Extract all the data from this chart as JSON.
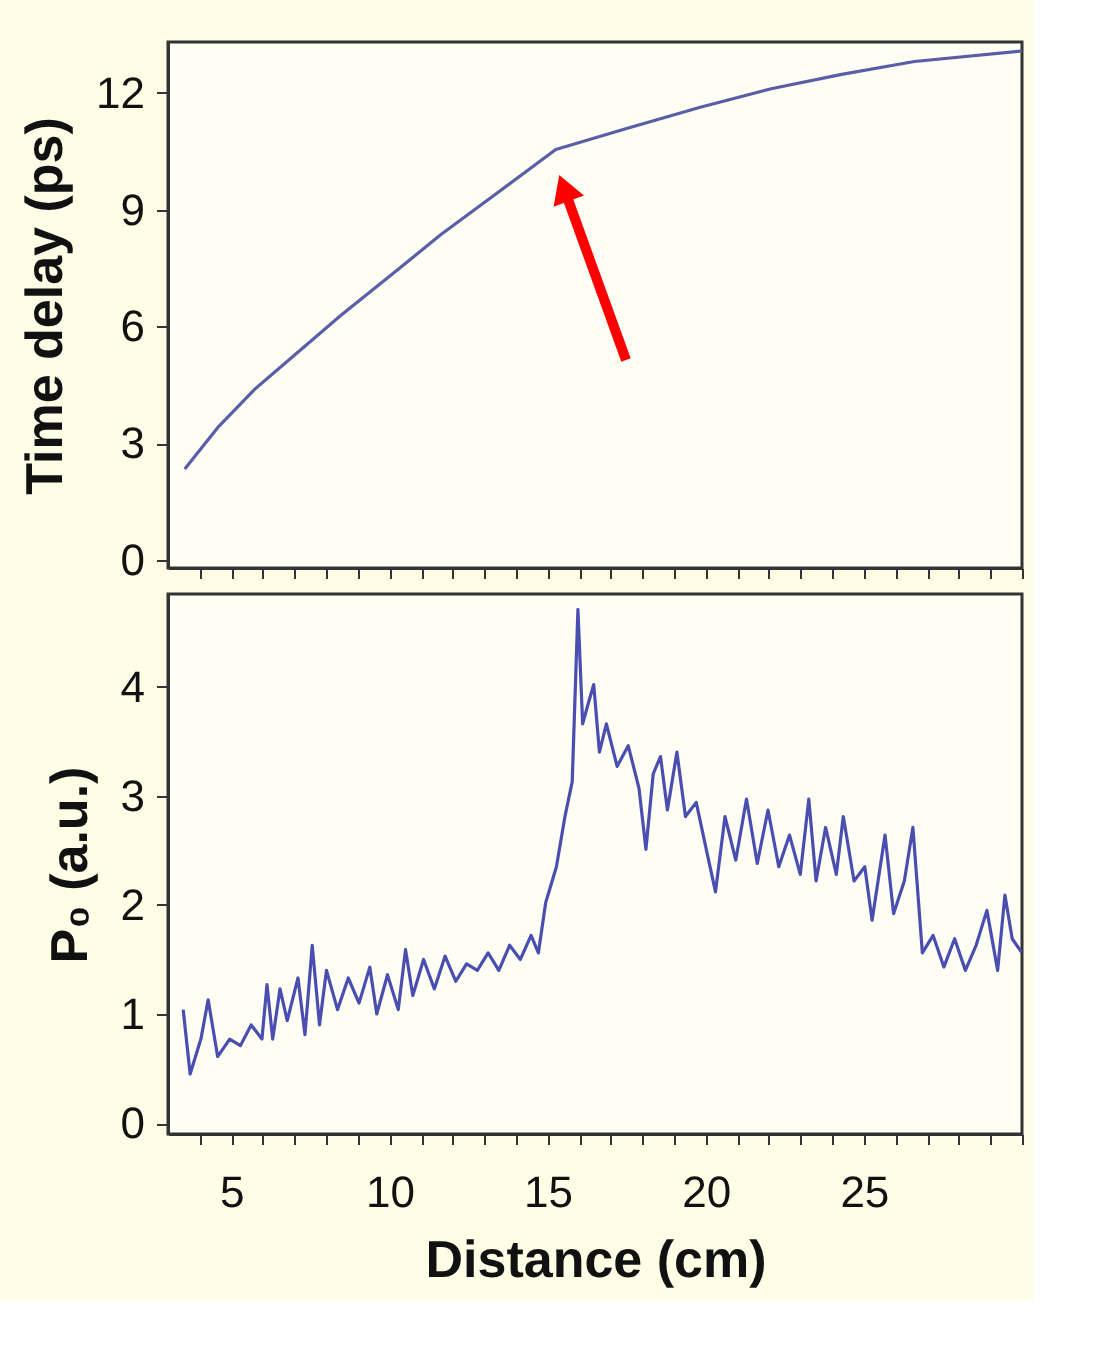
{
  "chart_data": [
    {
      "type": "line",
      "ylabel": "Time delay (ps)",
      "xlim": [
        3,
        30
      ],
      "ylim": [
        -0.2,
        13.3
      ],
      "yticks": [
        0,
        3,
        6,
        9,
        12
      ],
      "tick_labels": "y",
      "grid": false,
      "xticks": [
        {
          "value": 4,
          "label": null
        },
        5,
        {
          "value": 6,
          "label": null
        },
        {
          "value": 7,
          "label": null
        },
        {
          "value": 8,
          "label": null
        },
        {
          "value": 9,
          "label": null
        },
        10,
        {
          "value": 11,
          "label": null
        },
        {
          "value": 12,
          "label": null
        },
        {
          "value": 13,
          "label": null
        },
        {
          "value": 14,
          "label": null
        },
        15,
        {
          "value": 16,
          "label": null
        },
        {
          "value": 17,
          "label": null
        },
        {
          "value": 18,
          "label": null
        },
        {
          "value": 19,
          "label": null
        },
        20,
        {
          "value": 21,
          "label": null
        },
        {
          "value": 22,
          "label": null
        },
        {
          "value": 23,
          "label": null
        },
        {
          "value": 24,
          "label": null
        },
        25,
        {
          "value": 26,
          "label": null
        },
        {
          "value": 27,
          "label": null
        },
        {
          "value": 28,
          "label": null
        },
        {
          "value": 29,
          "label": null
        },
        {
          "value": 30,
          "label": null
        }
      ],
      "series": [
        {
          "color": "#5a5ea8",
          "x": [
            3.53,
            4.6,
            5.73,
            8.46,
            10.27,
            11.63,
            13.45,
            15.26,
            17.5,
            19.8,
            22.07,
            24.3,
            26.6,
            30
          ],
          "values": [
            2.34,
            3.43,
            4.38,
            6.28,
            7.46,
            8.36,
            9.45,
            10.54,
            11.08,
            11.62,
            12.1,
            12.47,
            12.8,
            13.07
          ]
        }
      ]
    },
    {
      "type": "line",
      "ylabel": "P₀ (a.u.)",
      "xlabel": "Distance (cm)",
      "xlim": [
        3,
        30
      ],
      "ylim": [
        -0.1,
        4.85
      ],
      "yticks": [
        0,
        1,
        2,
        3,
        4
      ],
      "grid": false,
      "xticks": [
        {
          "value": 4,
          "label": null
        },
        5,
        {
          "value": 6,
          "label": null
        },
        {
          "value": 7,
          "label": null
        },
        {
          "value": 8,
          "label": null
        },
        {
          "value": 9,
          "label": null
        },
        10,
        {
          "value": 11,
          "label": null
        },
        {
          "value": 12,
          "label": null
        },
        {
          "value": 13,
          "label": null
        },
        {
          "value": 14,
          "label": null
        },
        15,
        {
          "value": 16,
          "label": null
        },
        {
          "value": 17,
          "label": null
        },
        {
          "value": 18,
          "label": null
        },
        {
          "value": 19,
          "label": null
        },
        20,
        {
          "value": 21,
          "label": null
        },
        {
          "value": 22,
          "label": null
        },
        {
          "value": 23,
          "label": null
        },
        {
          "value": 24,
          "label": null
        },
        25,
        {
          "value": 26,
          "label": null
        },
        {
          "value": 27,
          "label": null
        },
        {
          "value": 28,
          "label": null
        },
        {
          "value": 29,
          "label": null
        },
        {
          "value": 30,
          "label": null
        }
      ],
      "series": [
        {
          "color": "#4a4eb0",
          "x": [
            3.48,
            3.7,
            4.04,
            4.27,
            4.57,
            4.95,
            5.29,
            5.63,
            5.97,
            6.13,
            6.31,
            6.54,
            6.77,
            7.11,
            7.33,
            7.56,
            7.79,
            8.01,
            8.36,
            8.7,
            9.04,
            9.38,
            9.6,
            9.94,
            10.28,
            10.51,
            10.74,
            11.08,
            11.42,
            11.76,
            12.1,
            12.44,
            12.78,
            13.12,
            13.46,
            13.8,
            14.14,
            14.48,
            14.71,
            14.94,
            15.28,
            15.55,
            15.78,
            15.96,
            16.11,
            16.3,
            16.46,
            16.64,
            16.86,
            17.2,
            17.55,
            17.89,
            18.11,
            18.34,
            18.57,
            18.79,
            19.09,
            19.36,
            19.7,
            20.04,
            20.31,
            20.61,
            20.95,
            21.29,
            21.63,
            21.97,
            22.31,
            22.65,
            22.99,
            23.26,
            23.49,
            23.79,
            24.13,
            24.35,
            24.69,
            25.03,
            25.26,
            25.67,
            25.94,
            26.28,
            26.55,
            26.85,
            27.19,
            27.53,
            27.87,
            28.21,
            28.55,
            28.89,
            29.23,
            29.46,
            29.69,
            30
          ],
          "values": [
            1.04,
            0.45,
            0.77,
            1.13,
            0.61,
            0.77,
            0.71,
            0.9,
            0.77,
            1.27,
            0.77,
            1.23,
            0.94,
            1.33,
            0.81,
            1.63,
            0.9,
            1.4,
            1.04,
            1.33,
            1.1,
            1.43,
            1.0,
            1.36,
            1.04,
            1.59,
            1.17,
            1.5,
            1.23,
            1.53,
            1.3,
            1.46,
            1.4,
            1.56,
            1.4,
            1.63,
            1.5,
            1.72,
            1.56,
            2.02,
            2.35,
            2.81,
            3.13,
            4.71,
            3.66,
            3.86,
            4.02,
            3.4,
            3.66,
            3.27,
            3.46,
            3.07,
            2.51,
            3.2,
            3.36,
            2.87,
            3.4,
            2.81,
            2.94,
            2.48,
            2.12,
            2.81,
            2.41,
            2.97,
            2.38,
            2.87,
            2.35,
            2.64,
            2.28,
            2.97,
            2.22,
            2.71,
            2.28,
            2.81,
            2.22,
            2.35,
            1.86,
            2.64,
            1.92,
            2.22,
            2.71,
            1.56,
            1.72,
            1.43,
            1.69,
            1.4,
            1.63,
            1.95,
            1.4,
            2.09,
            1.69,
            1.56
          ]
        }
      ]
    }
  ]
}
